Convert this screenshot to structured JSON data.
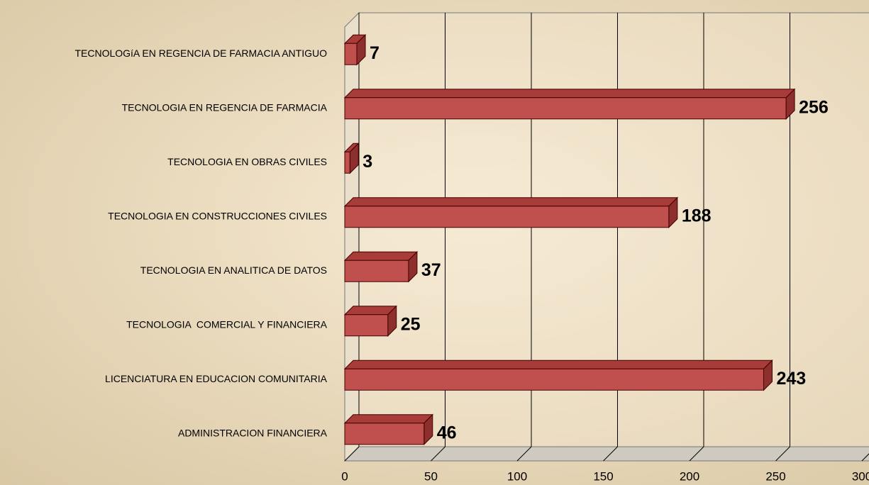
{
  "chart_data": {
    "type": "bar",
    "orientation": "horizontal",
    "categories": [
      "TECNOLOGíA EN REGENCIA DE FARMACIA ANTIGUO",
      "TECNOLOGIA EN REGENCIA DE FARMACIA",
      "TECNOLOGIA EN OBRAS CIVILES",
      "TECNOLOGIA EN CONSTRUCCIONES CIVILES",
      "TECNOLOGIA EN ANALITICA DE DATOS",
      "TECNOLOGIA  COMERCIAL Y FINANCIERA",
      "LICENCIATURA EN EDUCACION COMUNITARIA",
      "ADMINISTRACION FINANCIERA"
    ],
    "values": [
      7,
      256,
      3,
      188,
      37,
      25,
      243,
      46
    ],
    "color": "#c0504d",
    "xlim": [
      0,
      300
    ],
    "xticks": [
      0,
      50,
      100,
      150,
      200,
      250,
      300
    ],
    "grid": true
  }
}
